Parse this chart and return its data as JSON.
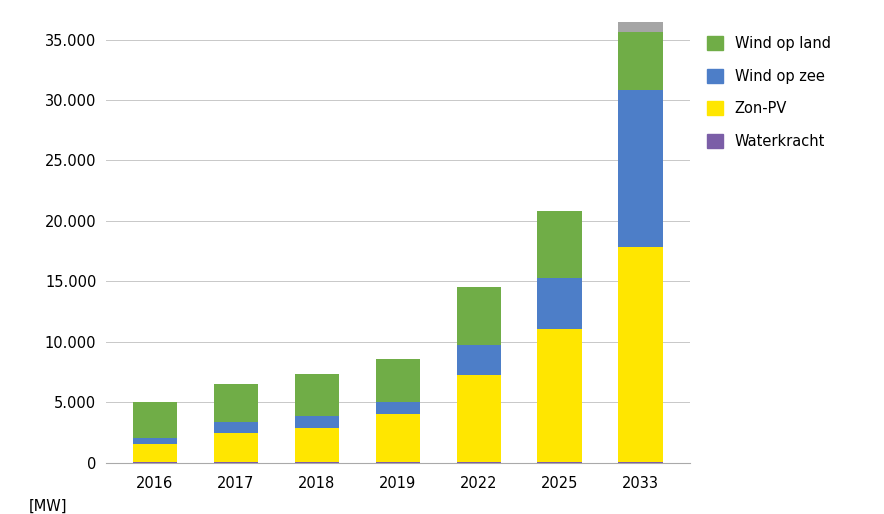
{
  "categories": [
    "2016",
    "2017",
    "2018",
    "2019",
    "2022",
    "2025",
    "2033"
  ],
  "waterkracht": [
    37,
    37,
    37,
    37,
    37,
    37,
    37
  ],
  "zon_pv": [
    1500,
    2400,
    2800,
    4000,
    7200,
    11000,
    17800
  ],
  "wind_op_zee": [
    500,
    900,
    1000,
    1000,
    2500,
    4200,
    13000
  ],
  "wind_op_land": [
    3013,
    3163,
    3463,
    3563,
    4763,
    5563,
    4763
  ],
  "overig": [
    0,
    0,
    0,
    0,
    0,
    0,
    836
  ],
  "colors": {
    "waterkracht": "#7B5EA7",
    "zon_pv": "#FFE600",
    "wind_op_zee": "#4D7EC8",
    "wind_op_land": "#70AD47",
    "overig": "#A5A5A5"
  },
  "legend_labels": [
    "Wind op land",
    "Wind op zee",
    "Zon-PV",
    "Waterkracht"
  ],
  "ylabel_annotation": "[MW]",
  "ylim": [
    0,
    37000
  ],
  "yticks": [
    0,
    5000,
    10000,
    15000,
    20000,
    25000,
    30000,
    35000
  ],
  "ytick_labels": [
    "0",
    "5.000",
    "10.000",
    "15.000",
    "20.000",
    "25.000",
    "30.000",
    "35.000"
  ],
  "bar_width": 0.55,
  "background_color": "#FFFFFF",
  "grid_color": "#C8C8C8"
}
